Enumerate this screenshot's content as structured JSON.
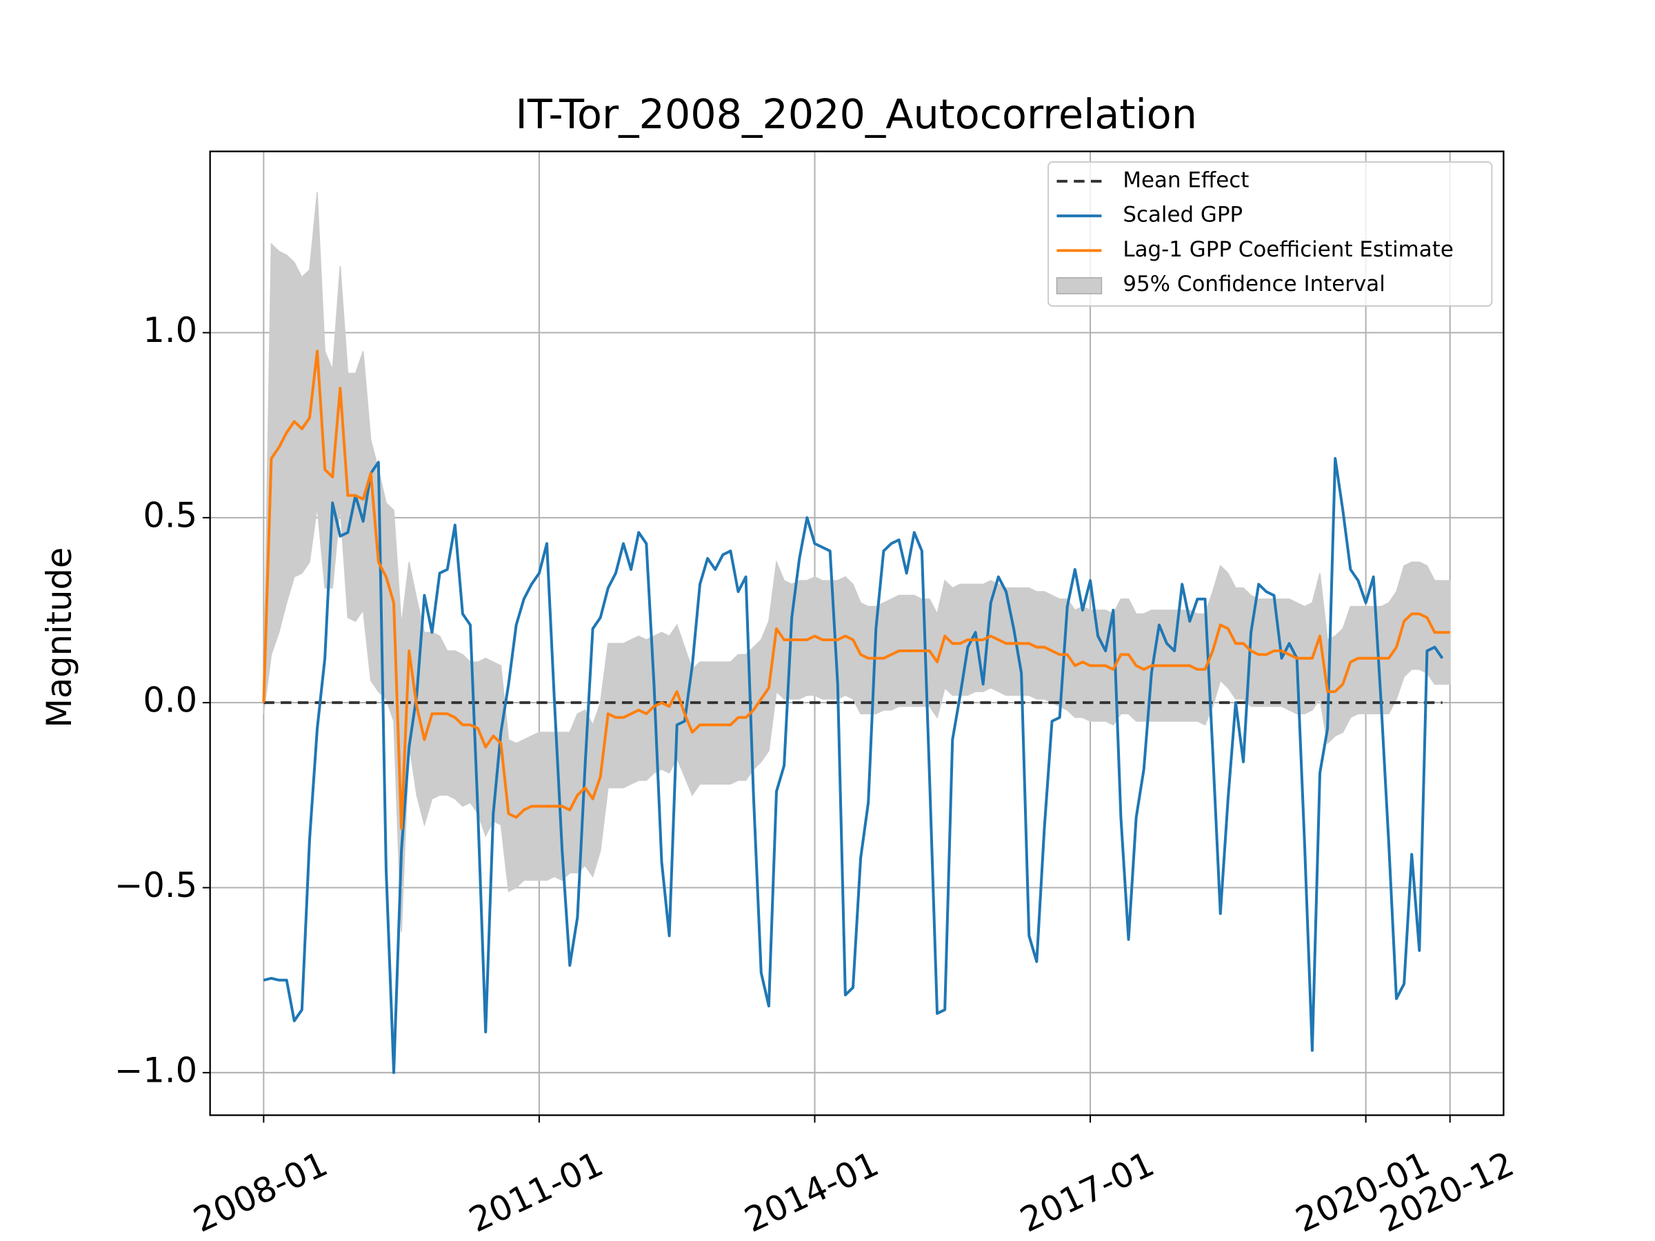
{
  "chart_data": {
    "type": "line",
    "title": "IT-Tor_2008_2020_Autocorrelation",
    "y_label": "Magnitude",
    "x": [
      "2008-01",
      "2008-02",
      "2008-03",
      "2008-04",
      "2008-05",
      "2008-06",
      "2008-07",
      "2008-08",
      "2008-09",
      "2008-10",
      "2008-11",
      "2008-12",
      "2009-01",
      "2009-02",
      "2009-03",
      "2009-04",
      "2009-05",
      "2009-06",
      "2009-07",
      "2009-08",
      "2009-09",
      "2009-10",
      "2009-11",
      "2009-12",
      "2010-01",
      "2010-02",
      "2010-03",
      "2010-04",
      "2010-05",
      "2010-06",
      "2010-07",
      "2010-08",
      "2010-09",
      "2010-10",
      "2010-11",
      "2010-12",
      "2011-01",
      "2011-02",
      "2011-03",
      "2011-04",
      "2011-05",
      "2011-06",
      "2011-07",
      "2011-08",
      "2011-09",
      "2011-10",
      "2011-11",
      "2011-12",
      "2012-01",
      "2012-02",
      "2012-03",
      "2012-04",
      "2012-05",
      "2012-06",
      "2012-07",
      "2012-08",
      "2012-09",
      "2012-10",
      "2012-11",
      "2012-12",
      "2013-01",
      "2013-02",
      "2013-03",
      "2013-04",
      "2013-05",
      "2013-06",
      "2013-07",
      "2013-08",
      "2013-09",
      "2013-10",
      "2013-11",
      "2013-12",
      "2014-01",
      "2014-02",
      "2014-03",
      "2014-04",
      "2014-05",
      "2014-06",
      "2014-07",
      "2014-08",
      "2014-09",
      "2014-10",
      "2014-11",
      "2014-12",
      "2015-01",
      "2015-02",
      "2015-03",
      "2015-04",
      "2015-05",
      "2015-06",
      "2015-07",
      "2015-08",
      "2015-09",
      "2015-10",
      "2015-11",
      "2015-12",
      "2016-01",
      "2016-02",
      "2016-03",
      "2016-04",
      "2016-05",
      "2016-06",
      "2016-07",
      "2016-08",
      "2016-09",
      "2016-10",
      "2016-11",
      "2016-12",
      "2017-01",
      "2017-02",
      "2017-03",
      "2017-04",
      "2017-05",
      "2017-06",
      "2017-07",
      "2017-08",
      "2017-09",
      "2017-10",
      "2017-11",
      "2017-12",
      "2018-01",
      "2018-02",
      "2018-03",
      "2018-04",
      "2018-05",
      "2018-06",
      "2018-07",
      "2018-08",
      "2018-09",
      "2018-10",
      "2018-11",
      "2018-12",
      "2019-01",
      "2019-02",
      "2019-03",
      "2019-04",
      "2019-05",
      "2019-06",
      "2019-07",
      "2019-08",
      "2019-09",
      "2019-10",
      "2019-11",
      "2019-12",
      "2020-01",
      "2020-02",
      "2020-03",
      "2020-04",
      "2020-05",
      "2020-06",
      "2020-07",
      "2020-08",
      "2020-09",
      "2020-10",
      "2020-11",
      "2020-12"
    ],
    "xlim": [
      "2007-06",
      "2021-07"
    ],
    "xticks": [
      "2008-01",
      "2011-01",
      "2014-01",
      "2017-01",
      "2020-01",
      "2020-12"
    ],
    "ylim": [
      -1.115,
      1.49
    ],
    "yticks": [
      {
        "value": -1.0,
        "label": "−1.0"
      },
      {
        "value": -0.5,
        "label": "−0.5"
      },
      {
        "value": 0.0,
        "label": "0.0"
      },
      {
        "value": 0.5,
        "label": "0.5"
      },
      {
        "value": 1.0,
        "label": "1.0"
      }
    ],
    "grid": true,
    "legend": "upper right",
    "band": {
      "name": "95% Confidence Interval",
      "color": "#cccccc",
      "upper": [
        0.03,
        1.24,
        1.22,
        1.21,
        1.19,
        1.15,
        1.17,
        1.38,
        0.95,
        0.9,
        1.18,
        0.89,
        0.89,
        0.95,
        0.71,
        0.63,
        0.54,
        0.52,
        0.21,
        0.38,
        0.28,
        0.19,
        0.19,
        0.18,
        0.14,
        0.14,
        0.13,
        0.11,
        0.11,
        0.12,
        0.11,
        0.1,
        -0.1,
        -0.11,
        -0.1,
        -0.09,
        -0.08,
        -0.08,
        -0.08,
        -0.08,
        -0.08,
        -0.03,
        -0.02,
        -0.06,
        0.0,
        0.16,
        0.16,
        0.16,
        0.17,
        0.18,
        0.17,
        0.18,
        0.19,
        0.18,
        0.21,
        0.15,
        0.09,
        0.11,
        0.11,
        0.11,
        0.11,
        0.11,
        0.13,
        0.13,
        0.15,
        0.17,
        0.22,
        0.38,
        0.33,
        0.32,
        0.33,
        0.33,
        0.34,
        0.33,
        0.33,
        0.33,
        0.34,
        0.32,
        0.27,
        0.26,
        0.26,
        0.27,
        0.28,
        0.29,
        0.29,
        0.29,
        0.28,
        0.28,
        0.24,
        0.33,
        0.31,
        0.32,
        0.32,
        0.32,
        0.32,
        0.33,
        0.32,
        0.31,
        0.31,
        0.31,
        0.31,
        0.3,
        0.3,
        0.29,
        0.28,
        0.28,
        0.25,
        0.26,
        0.25,
        0.25,
        0.25,
        0.24,
        0.28,
        0.28,
        0.24,
        0.24,
        0.25,
        0.25,
        0.25,
        0.25,
        0.25,
        0.25,
        0.24,
        0.24,
        0.3,
        0.37,
        0.35,
        0.31,
        0.31,
        0.29,
        0.28,
        0.28,
        0.28,
        0.28,
        0.28,
        0.27,
        0.26,
        0.27,
        0.35,
        0.17,
        0.18,
        0.2,
        0.26,
        0.26,
        0.26,
        0.26,
        0.26,
        0.27,
        0.3,
        0.37,
        0.38,
        0.38,
        0.37,
        0.33,
        0.33,
        0.33
      ],
      "lower": [
        -0.03,
        0.13,
        0.19,
        0.27,
        0.34,
        0.35,
        0.38,
        0.53,
        0.31,
        0.31,
        0.53,
        0.23,
        0.22,
        0.25,
        0.06,
        0.03,
        0.01,
        -0.05,
        -0.62,
        -0.11,
        -0.25,
        -0.33,
        -0.26,
        -0.25,
        -0.25,
        -0.26,
        -0.28,
        -0.27,
        -0.3,
        -0.36,
        -0.32,
        -0.33,
        -0.51,
        -0.5,
        -0.48,
        -0.48,
        -0.48,
        -0.48,
        -0.47,
        -0.48,
        -0.46,
        -0.46,
        -0.44,
        -0.47,
        -0.4,
        -0.23,
        -0.23,
        -0.23,
        -0.22,
        -0.21,
        -0.21,
        -0.19,
        -0.18,
        -0.19,
        -0.15,
        -0.2,
        -0.25,
        -0.22,
        -0.22,
        -0.22,
        -0.22,
        -0.22,
        -0.21,
        -0.21,
        -0.18,
        -0.16,
        -0.13,
        0.03,
        0.01,
        0.01,
        0.01,
        0.02,
        0.02,
        0.01,
        0.01,
        0.01,
        0.02,
        0.01,
        -0.03,
        -0.03,
        -0.03,
        -0.02,
        -0.02,
        -0.01,
        -0.01,
        -0.01,
        -0.01,
        -0.01,
        -0.04,
        0.04,
        0.02,
        0.02,
        0.02,
        0.03,
        0.03,
        0.04,
        0.03,
        0.02,
        0.02,
        0.02,
        0.02,
        0.01,
        0.01,
        0.0,
        -0.01,
        -0.02,
        -0.04,
        -0.04,
        -0.05,
        -0.05,
        -0.05,
        -0.06,
        -0.03,
        -0.03,
        -0.05,
        -0.05,
        -0.05,
        -0.05,
        -0.05,
        -0.05,
        -0.05,
        -0.05,
        -0.05,
        -0.06,
        -0.01,
        0.06,
        0.04,
        0.01,
        0.01,
        -0.01,
        -0.01,
        -0.01,
        -0.01,
        -0.01,
        -0.02,
        -0.03,
        -0.03,
        -0.02,
        0.01,
        -0.11,
        -0.09,
        -0.08,
        -0.04,
        -0.03,
        -0.03,
        -0.03,
        -0.03,
        -0.03,
        0.01,
        0.07,
        0.09,
        0.09,
        0.08,
        0.05,
        0.05,
        0.05
      ]
    },
    "series": [
      {
        "name": "Mean Effect",
        "color": "#333333",
        "dashed": true,
        "x": [
          "2008-01",
          "2020-11"
        ],
        "values": [
          0,
          0
        ]
      },
      {
        "name": "Scaled GPP",
        "color": "#1f77b4",
        "values": [
          -0.75,
          -0.745,
          -0.75,
          -0.75,
          -0.86,
          -0.83,
          -0.37,
          -0.07,
          0.12,
          0.54,
          0.45,
          0.46,
          0.56,
          0.49,
          0.62,
          0.65,
          -0.45,
          -1.0,
          -0.4,
          -0.12,
          0.02,
          0.29,
          0.19,
          0.35,
          0.36,
          0.48,
          0.24,
          0.21,
          -0.3,
          -0.89,
          -0.3,
          -0.08,
          0.05,
          0.21,
          0.28,
          0.32,
          0.35,
          0.43,
          0.0,
          -0.4,
          -0.71,
          -0.58,
          -0.17,
          0.2,
          0.23,
          0.31,
          0.35,
          0.43,
          0.36,
          0.46,
          0.43,
          0.05,
          -0.43,
          -0.63,
          -0.06,
          -0.05,
          0.1,
          0.32,
          0.39,
          0.36,
          0.4,
          0.41,
          0.3,
          0.34,
          -0.25,
          -0.73,
          -0.82,
          -0.24,
          -0.17,
          0.23,
          0.39,
          0.5,
          0.43,
          0.42,
          0.41,
          0.05,
          -0.79,
          -0.77,
          -0.42,
          -0.27,
          0.2,
          0.41,
          0.43,
          0.44,
          0.35,
          0.46,
          0.41,
          -0.2,
          -0.84,
          -0.83,
          -0.1,
          0.02,
          0.15,
          0.19,
          0.05,
          0.27,
          0.34,
          0.3,
          0.2,
          0.08,
          -0.63,
          -0.7,
          -0.34,
          -0.05,
          -0.04,
          0.26,
          0.36,
          0.25,
          0.33,
          0.18,
          0.14,
          0.25,
          -0.31,
          -0.64,
          -0.31,
          -0.18,
          0.08,
          0.21,
          0.16,
          0.14,
          0.32,
          0.22,
          0.28,
          0.28,
          -0.13,
          -0.57,
          -0.26,
          0.0,
          -0.16,
          0.19,
          0.32,
          0.3,
          0.29,
          0.12,
          0.16,
          0.12,
          -0.38,
          -0.94,
          -0.19,
          -0.07,
          0.66,
          0.52,
          0.36,
          0.33,
          0.27,
          0.34,
          0.0,
          -0.38,
          -0.8,
          -0.76,
          -0.41,
          -0.67,
          0.14,
          0.15,
          0.12,
          null
        ]
      },
      {
        "name": "Lag-1 GPP Coefficient Estimate",
        "color": "#ff7f0e",
        "values": [
          0.0,
          0.66,
          0.69,
          0.73,
          0.76,
          0.74,
          0.77,
          0.95,
          0.63,
          0.61,
          0.85,
          0.56,
          0.56,
          0.55,
          0.62,
          0.38,
          0.34,
          0.27,
          -0.34,
          0.14,
          -0.01,
          -0.1,
          -0.03,
          -0.03,
          -0.03,
          -0.04,
          -0.06,
          -0.06,
          -0.07,
          -0.12,
          -0.09,
          -0.11,
          -0.3,
          -0.31,
          -0.29,
          -0.28,
          -0.28,
          -0.28,
          -0.28,
          -0.28,
          -0.29,
          -0.25,
          -0.23,
          -0.26,
          -0.2,
          -0.03,
          -0.04,
          -0.04,
          -0.03,
          -0.02,
          -0.03,
          -0.01,
          0.0,
          -0.01,
          0.03,
          -0.03,
          -0.08,
          -0.06,
          -0.06,
          -0.06,
          -0.06,
          -0.06,
          -0.04,
          -0.04,
          -0.02,
          0.01,
          0.04,
          0.2,
          0.17,
          0.17,
          0.17,
          0.17,
          0.18,
          0.17,
          0.17,
          0.17,
          0.18,
          0.17,
          0.13,
          0.12,
          0.12,
          0.12,
          0.13,
          0.14,
          0.14,
          0.14,
          0.14,
          0.14,
          0.11,
          0.18,
          0.16,
          0.16,
          0.17,
          0.17,
          0.17,
          0.18,
          0.17,
          0.16,
          0.16,
          0.16,
          0.16,
          0.15,
          0.15,
          0.14,
          0.13,
          0.13,
          0.1,
          0.11,
          0.1,
          0.1,
          0.1,
          0.09,
          0.13,
          0.13,
          0.1,
          0.09,
          0.1,
          0.1,
          0.1,
          0.1,
          0.1,
          0.1,
          0.09,
          0.09,
          0.14,
          0.21,
          0.2,
          0.16,
          0.16,
          0.14,
          0.13,
          0.13,
          0.14,
          0.14,
          0.13,
          0.12,
          0.12,
          0.12,
          0.18,
          0.03,
          0.03,
          0.05,
          0.11,
          0.12,
          0.12,
          0.12,
          0.12,
          0.12,
          0.15,
          0.22,
          0.24,
          0.24,
          0.23,
          0.19,
          0.19,
          0.19
        ]
      }
    ]
  }
}
